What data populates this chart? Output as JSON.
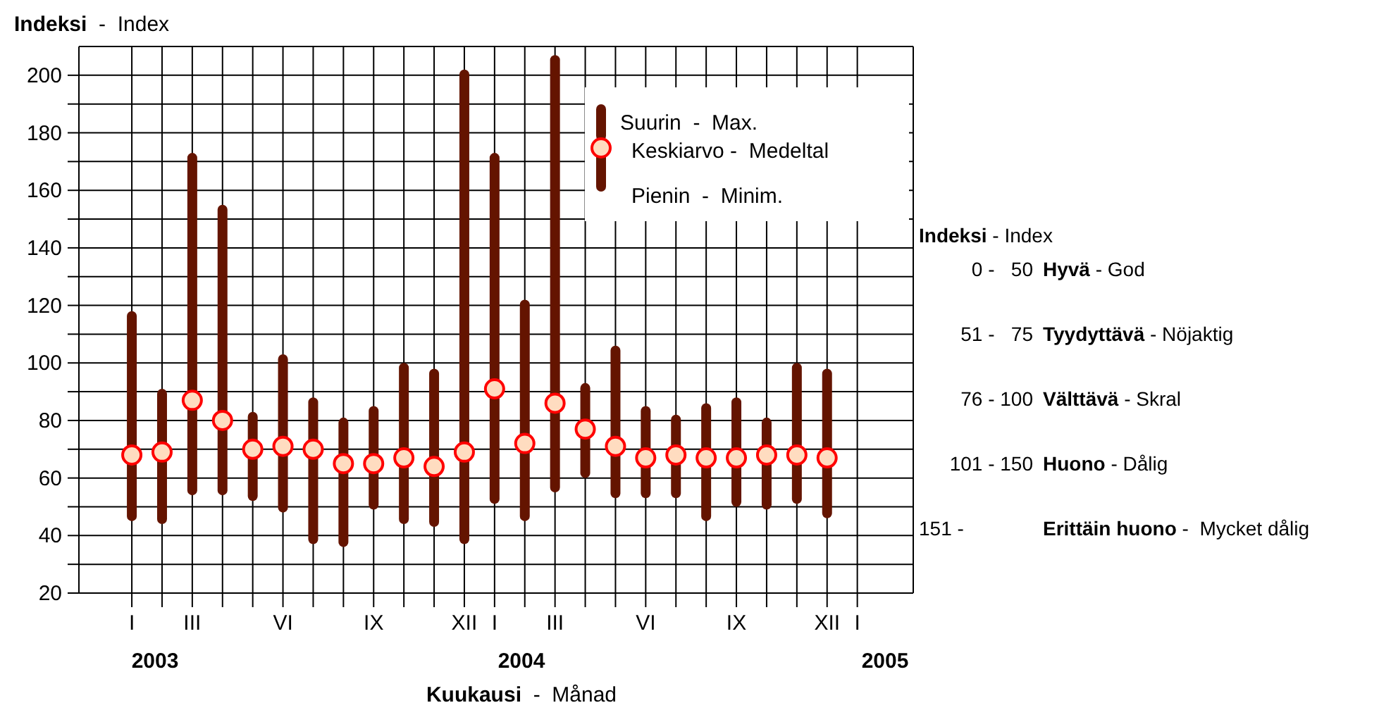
{
  "chart_data": {
    "type": "bar",
    "ylabel": "Indeksi  -  Index",
    "xlabel": "Kuukausi  -  Månad",
    "categories": [
      "I",
      null,
      "III",
      null,
      null,
      "VI",
      null,
      null,
      "IX",
      null,
      null,
      "XII",
      "I",
      null,
      "III",
      null,
      null,
      "VI",
      null,
      null,
      "IX",
      null,
      null,
      "XII",
      "I"
    ],
    "series": [
      {
        "name": "Suurin  -  Max.",
        "color": "#641400",
        "base": [
          45,
          44,
          54,
          54,
          52,
          48,
          37,
          36,
          49,
          44,
          43,
          37,
          51,
          45,
          55,
          60,
          53,
          53,
          53,
          45,
          50,
          49,
          51,
          46,
          null
        ],
        "values": [
          73,
          47,
          119,
          101,
          31,
          55,
          51,
          45,
          36,
          56,
          55,
          165,
          122,
          77,
          152,
          33,
          53,
          32,
          29,
          41,
          38,
          32,
          49,
          52,
          null
        ]
      },
      {
        "type": "scatter",
        "name": "Keskiarvo -  Medeltal",
        "color": "#ff0000",
        "values": [
          68,
          69,
          87,
          80,
          70,
          71,
          70,
          65,
          65,
          67,
          64,
          69,
          91,
          72,
          86,
          77,
          71,
          67,
          68,
          67,
          67,
          68,
          68,
          67,
          null
        ]
      }
    ],
    "ylim": [
      20,
      210
    ],
    "yticks": [
      20,
      {
        "value": 30,
        "label": null
      },
      40,
      {
        "value": 50,
        "label": null
      },
      60,
      {
        "value": 70,
        "label": null
      },
      80,
      {
        "value": 90,
        "label": null
      },
      100,
      {
        "value": 110,
        "label": null
      },
      120,
      {
        "value": 130,
        "label": null
      },
      140,
      {
        "value": 150,
        "label": null
      },
      160,
      {
        "value": 170,
        "label": null
      },
      180,
      {
        "value": 190,
        "label": null
      },
      200
    ],
    "grid": true,
    "legend": "top right",
    "marker": "circle",
    "annotations": [
      "Pienin  -  Minim.",
      "2003",
      "2004",
      "2005",
      "Indeksi - Index",
      "0 -   50",
      "Hyvä - God",
      "51 -   75",
      "Tyydyttävä - Nöjaktig",
      "76 - 100",
      "Välttävä - Skral",
      "101 - 150",
      "Huono - Dålig",
      "151 -",
      "Erittäin huono -  Mycket dålig"
    ]
  }
}
